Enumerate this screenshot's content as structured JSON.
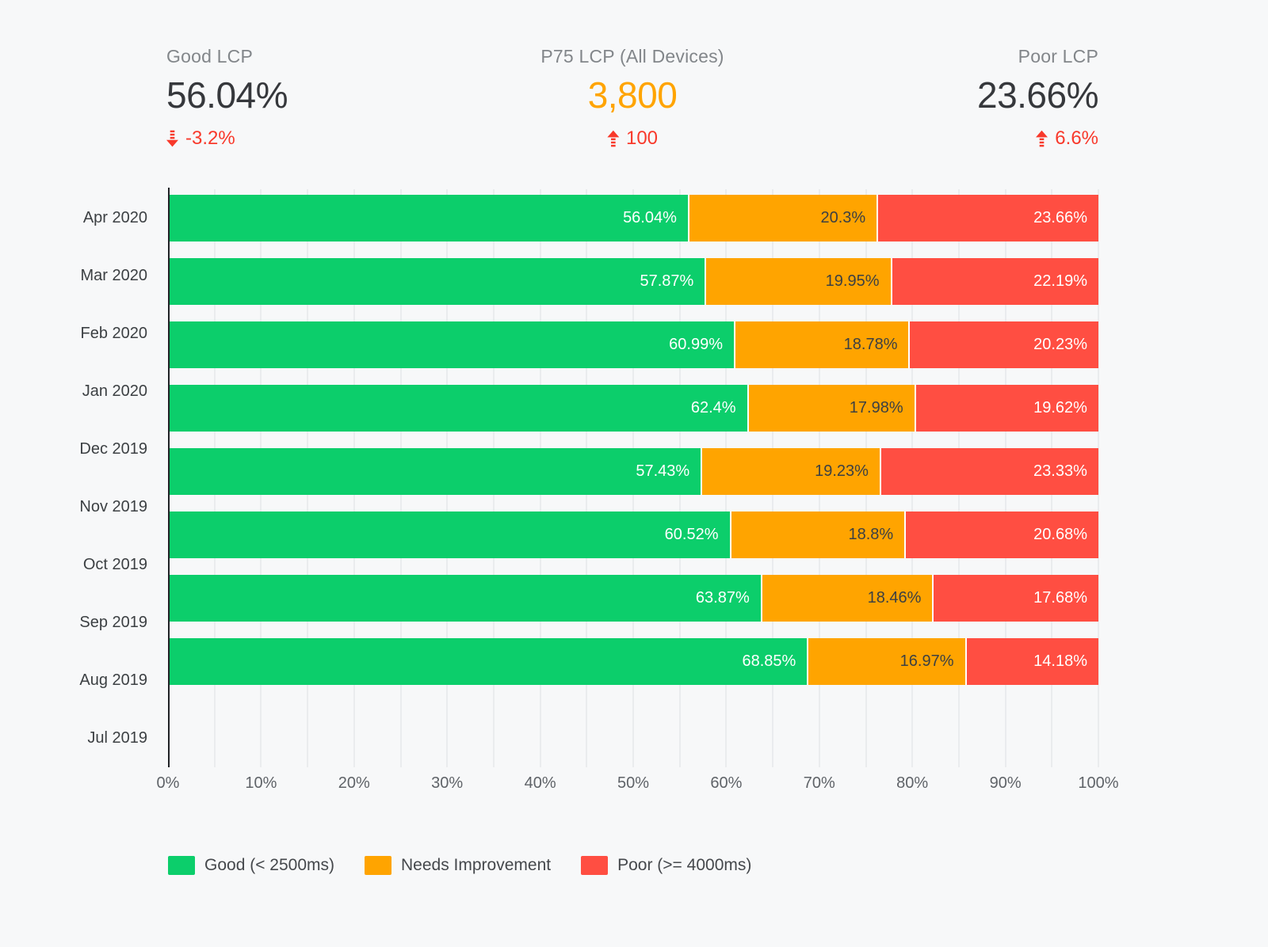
{
  "kpis": [
    {
      "label": "Good LCP",
      "value": "56.04%",
      "value_color": "#36383c",
      "delta": "-3.2%",
      "direction": "down"
    },
    {
      "label": "P75 LCP (All Devices)",
      "value": "3,800",
      "value_color": "#ffa400",
      "delta": "100",
      "direction": "up"
    },
    {
      "label": "Poor LCP",
      "value": "23.66%",
      "value_color": "#36383c",
      "delta": "6.6%",
      "direction": "up"
    }
  ],
  "colors": {
    "good": "#0cce6b",
    "needs_improvement": "#ffa400",
    "poor": "#ff4e42",
    "delta_red": "#f8392b",
    "background": "#f7f8f9"
  },
  "chart_data": {
    "type": "bar",
    "stacked": true,
    "orientation": "horizontal",
    "title": "",
    "xlabel": "",
    "ylabel": "",
    "xlim": [
      0,
      100
    ],
    "grid": "vertical gridlines every 5%",
    "legend_position": "bottom",
    "categories": [
      "Apr 2020",
      "Mar 2020",
      "Feb 2020",
      "Jan 2020",
      "Dec 2019",
      "Nov 2019",
      "Oct 2019",
      "Sep 2019",
      "Aug 2019",
      "Jul 2019"
    ],
    "series": [
      {
        "name": "Good (< 2500ms)",
        "color": "#0cce6b",
        "label_color": "#ffffff",
        "values": [
          56.04,
          57.87,
          60.99,
          62.4,
          57.43,
          60.52,
          63.87,
          68.85,
          null,
          null
        ]
      },
      {
        "name": "Needs Improvement",
        "color": "#ffa400",
        "label_color": "#3c4043",
        "values": [
          20.3,
          19.95,
          18.78,
          17.98,
          19.23,
          18.8,
          18.46,
          16.97,
          null,
          null
        ]
      },
      {
        "name": "Poor (>= 4000ms)",
        "color": "#ff4e42",
        "label_color": "#ffffff",
        "values": [
          23.66,
          22.19,
          20.23,
          19.62,
          23.33,
          20.68,
          17.68,
          14.18,
          null,
          null
        ]
      }
    ],
    "x_ticks": [
      "0%",
      "10%",
      "20%",
      "30%",
      "40%",
      "50%",
      "60%",
      "70%",
      "80%",
      "90%",
      "100%"
    ]
  }
}
